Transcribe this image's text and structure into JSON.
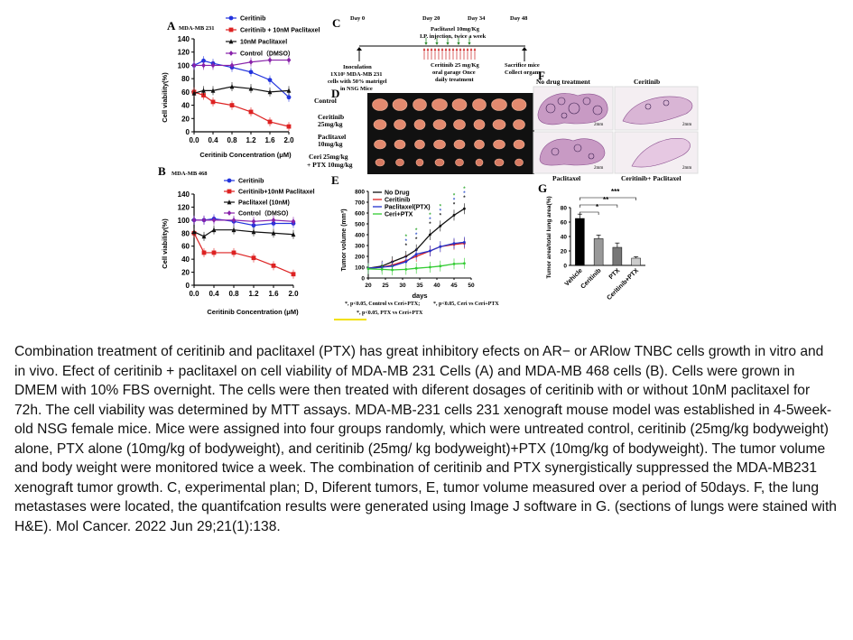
{
  "panels": {
    "A": {
      "letter": "A",
      "cell_line": "MDA-MB 231",
      "ylabel": "Cell viability(%)",
      "xlabel": "Ceritinib Concentration (μM)"
    },
    "B": {
      "letter": "B",
      "cell_line": "MDA-MB 468",
      "ylabel": "Cell viability(%)",
      "xlabel": "Ceritinib Concentration (μM)"
    },
    "C": {
      "letter": "C",
      "day0": "Day 0",
      "day20": "Day 20",
      "day34": "Day 34",
      "day48": "Day 48",
      "ptx_line1": "Paclitaxel 10mg/Kg",
      "ptx_line2": "I.P. injection, twice a week",
      "inoc_line1": "Inoculation",
      "inoc_line2": "1X10⁵ MDA-MB 231",
      "inoc_line3": "cells with 50% matrigel",
      "inoc_line4": "in NSG Mice",
      "cer_line1": "Ceritinib 25 mg/Kg",
      "cer_line2": "oral garage Once",
      "cer_line3": "daily treatment",
      "sac_line1": "Sacrifice mice",
      "sac_line2": "Collect organs"
    },
    "D": {
      "letter": "D",
      "rows": [
        {
          "l1": "Control",
          "l2": ""
        },
        {
          "l1": "Ceritinib",
          "l2": "25mg/kg"
        },
        {
          "l1": "Paclitaxel",
          "l2": "10mg/kg"
        },
        {
          "l1": "Ceri 25mg/kg",
          "l2": "+ PTX 10mg/kg"
        }
      ]
    },
    "E": {
      "letter": "E",
      "ylabel": "Tumor volume (mm³)",
      "xlabel": "days",
      "note1": "*, p<0.05, Control vs Ceri+PTX;",
      "note1b": "*, p<0.05, Ceri vs Ceri+PTX",
      "note2": "*, p<0.05, PTX vs Ceri+PTX"
    },
    "F": {
      "letter": "F",
      "label_tl": "No drug treatment",
      "label_tr": "Ceritinib",
      "label_bl": "Paclitaxel",
      "label_br": "Ceritinib+ Paclitaxel",
      "scale": "2mm"
    },
    "G": {
      "letter": "G",
      "ylabel": "Tumor area/total lung area(%)",
      "sig1": "*",
      "sig2": "**",
      "sig3": "***"
    }
  },
  "chart_data": [
    {
      "type": "line",
      "id": "A",
      "title": "MDA-MB 231",
      "xlabel": "Ceritinib Concentration (μM)",
      "ylabel": "Cell viability(%)",
      "x": [
        0.0,
        0.2,
        0.4,
        0.8,
        1.2,
        1.6,
        2.0
      ],
      "xticks": [
        "0.0",
        "0.4",
        "0.8",
        "1.2",
        "1.6",
        "2.0"
      ],
      "yticks": [
        "0",
        "20",
        "40",
        "60",
        "80",
        "100",
        "120",
        "140"
      ],
      "ylim": [
        0,
        140
      ],
      "series": [
        {
          "name": "Ceritinib",
          "color": "#2233dd",
          "marker": "circle",
          "values": [
            100,
            107,
            103,
            97,
            90,
            78,
            52
          ]
        },
        {
          "name": "Ceritinib + 10nM Paclitaxel",
          "color": "#dd2222",
          "marker": "square",
          "values": [
            60,
            55,
            45,
            40,
            30,
            15,
            8
          ]
        },
        {
          "name": "10nM Paclitaxel",
          "color": "#111111",
          "marker": "triangle",
          "values": [
            58,
            62,
            62,
            68,
            65,
            60,
            62
          ]
        },
        {
          "name": "Control（DMSO）",
          "color": "#8822aa",
          "marker": "diamond",
          "values": [
            100,
            100,
            100,
            100,
            105,
            108,
            108
          ]
        }
      ]
    },
    {
      "type": "line",
      "id": "B",
      "title": "MDA-MB 468",
      "xlabel": "Ceritinib Concentration (μM)",
      "ylabel": "Cell viability(%)",
      "x": [
        0.0,
        0.2,
        0.4,
        0.8,
        1.2,
        1.6,
        2.0
      ],
      "xticks": [
        "0.0",
        "0.4",
        "0.8",
        "1.2",
        "1.6",
        "2.0"
      ],
      "yticks": [
        "0",
        "20",
        "40",
        "60",
        "80",
        "100",
        "120",
        "140"
      ],
      "ylim": [
        0,
        140
      ],
      "series": [
        {
          "name": "Ceritinib",
          "color": "#2233dd",
          "marker": "circle",
          "values": [
            100,
            100,
            102,
            98,
            92,
            95,
            95
          ]
        },
        {
          "name": "Ceritinib+10nM Paclitaxel",
          "color": "#dd2222",
          "marker": "square",
          "values": [
            80,
            50,
            50,
            50,
            42,
            30,
            17
          ]
        },
        {
          "name": "Paclitaxel (10nM)",
          "color": "#111111",
          "marker": "triangle",
          "values": [
            82,
            75,
            85,
            85,
            82,
            80,
            78
          ]
        },
        {
          "name": "Control（DMSO）",
          "color": "#8822aa",
          "marker": "diamond",
          "values": [
            100,
            100,
            100,
            100,
            98,
            100,
            98
          ]
        }
      ]
    },
    {
      "type": "line",
      "id": "E",
      "xlabel": "days",
      "ylabel": "Tumor volume (mm³)",
      "x": [
        20,
        24,
        27,
        31,
        34,
        38,
        41,
        45,
        48
      ],
      "xticks": [
        "20",
        "25",
        "30",
        "35",
        "40",
        "45",
        "50"
      ],
      "yticks": [
        "0",
        "100",
        "200",
        "300",
        "400",
        "500",
        "600",
        "700",
        "800"
      ],
      "xlim": [
        20,
        50
      ],
      "ylim": [
        0,
        800
      ],
      "series": [
        {
          "name": "No Drug",
          "color": "#111111",
          "values": [
            90,
            110,
            150,
            200,
            260,
            400,
            480,
            580,
            640
          ]
        },
        {
          "name": "Ceritinib",
          "color": "#dd2222",
          "values": [
            90,
            100,
            120,
            160,
            200,
            250,
            290,
            310,
            320
          ]
        },
        {
          "name": "Paclitaxel(PTX)",
          "color": "#2233cc",
          "values": [
            90,
            100,
            110,
            150,
            220,
            250,
            290,
            320,
            330
          ]
        },
        {
          "name": "Ceri+PTX",
          "color": "#33cc33",
          "values": [
            85,
            80,
            75,
            80,
            90,
            100,
            110,
            130,
            135
          ]
        }
      ]
    },
    {
      "type": "bar",
      "id": "G",
      "ylabel": "Tumor area/total lung area(%)",
      "categories": [
        "Vehicle",
        "Ceritinib",
        "PTX",
        "Ceritinib+PTX"
      ],
      "values": [
        65,
        37,
        25,
        10
      ],
      "errors": [
        6,
        5,
        6,
        2
      ],
      "colors": [
        "#000000",
        "#999999",
        "#777777",
        "#cccccc"
      ],
      "yticks": [
        "0",
        "20",
        "40",
        "60",
        "80"
      ],
      "ylim": [
        0,
        80
      ]
    }
  ],
  "caption": "Combination treatment of ceritinib and paclitaxel (PTX) has great inhibitory efects on AR− or ARlow TNBC cells growth in vitro and in vivo. Efect of ceritinib + paclitaxel on cell viability of MDA-MB 231 Cells (A) and MDA-MB 468 cells (B). Cells were grown in DMEM with 10% FBS overnight. The cells were then treated with diferent dosages of ceritinib with or without 10nM paclitaxel for 72h. The cell viability was determined by MTT assays. MDA-MB-231 cells 231 xenograft mouse model was established in 4-5week-old NSG female mice. Mice were assigned into four groups randomly, which were untreated control, ceritinib (25mg/kg bodyweight) alone, PTX alone (10mg/kg of bodyweight), and ceritinib (25mg/ kg bodyweight)+PTX (10mg/kg of bodyweight). The tumor volume and body weight were monitored twice a week. The combination of ceritinib and PTX synergistically suppressed the MDA-MB231 xenograft tumor growth. C, experimental plan; D, Diferent tumors, E, tumor volume measured over a period of 50days. F, the lung metastases were located, the quantifcation results were generated using Image J software in G. (sections of lungs were stained with H&E). Mol Cancer. 2022 Jun 29;21(1):138."
}
